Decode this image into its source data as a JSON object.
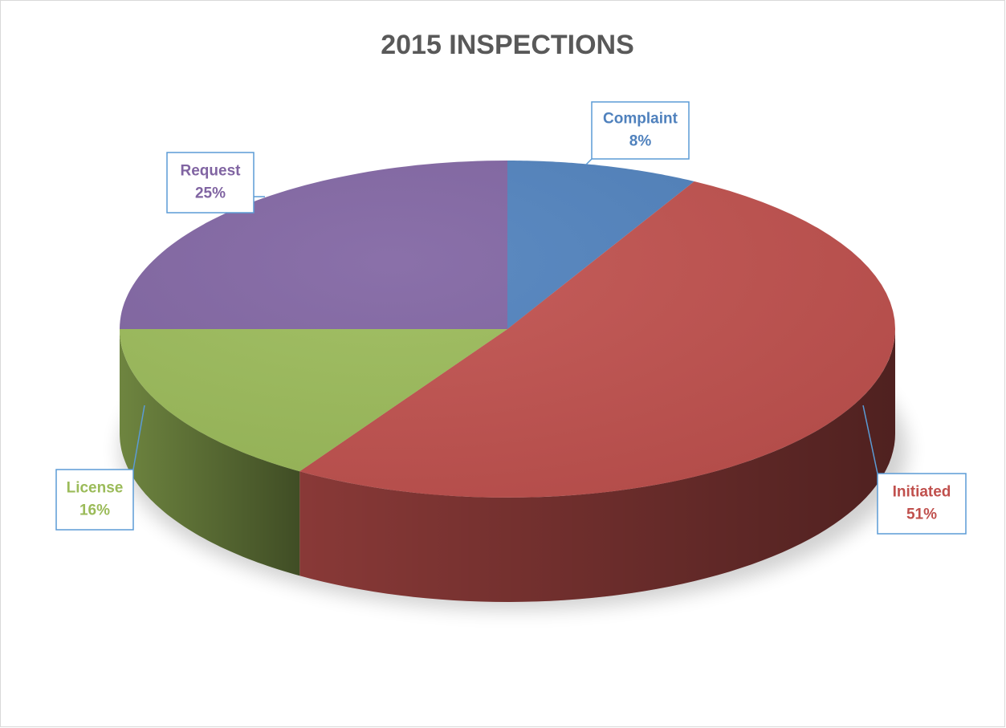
{
  "chart_data": {
    "type": "pie",
    "title": "2015 INSPECTIONS",
    "categories": [
      "Complaint",
      "Initiated",
      "License",
      "Request"
    ],
    "values": [
      8,
      51,
      16,
      25
    ],
    "value_labels": [
      "8%",
      "51%",
      "16%",
      "25%"
    ],
    "colors": [
      "#4f81bd",
      "#c0504d",
      "#9bbb59",
      "#8064a2"
    ],
    "legend": false
  }
}
